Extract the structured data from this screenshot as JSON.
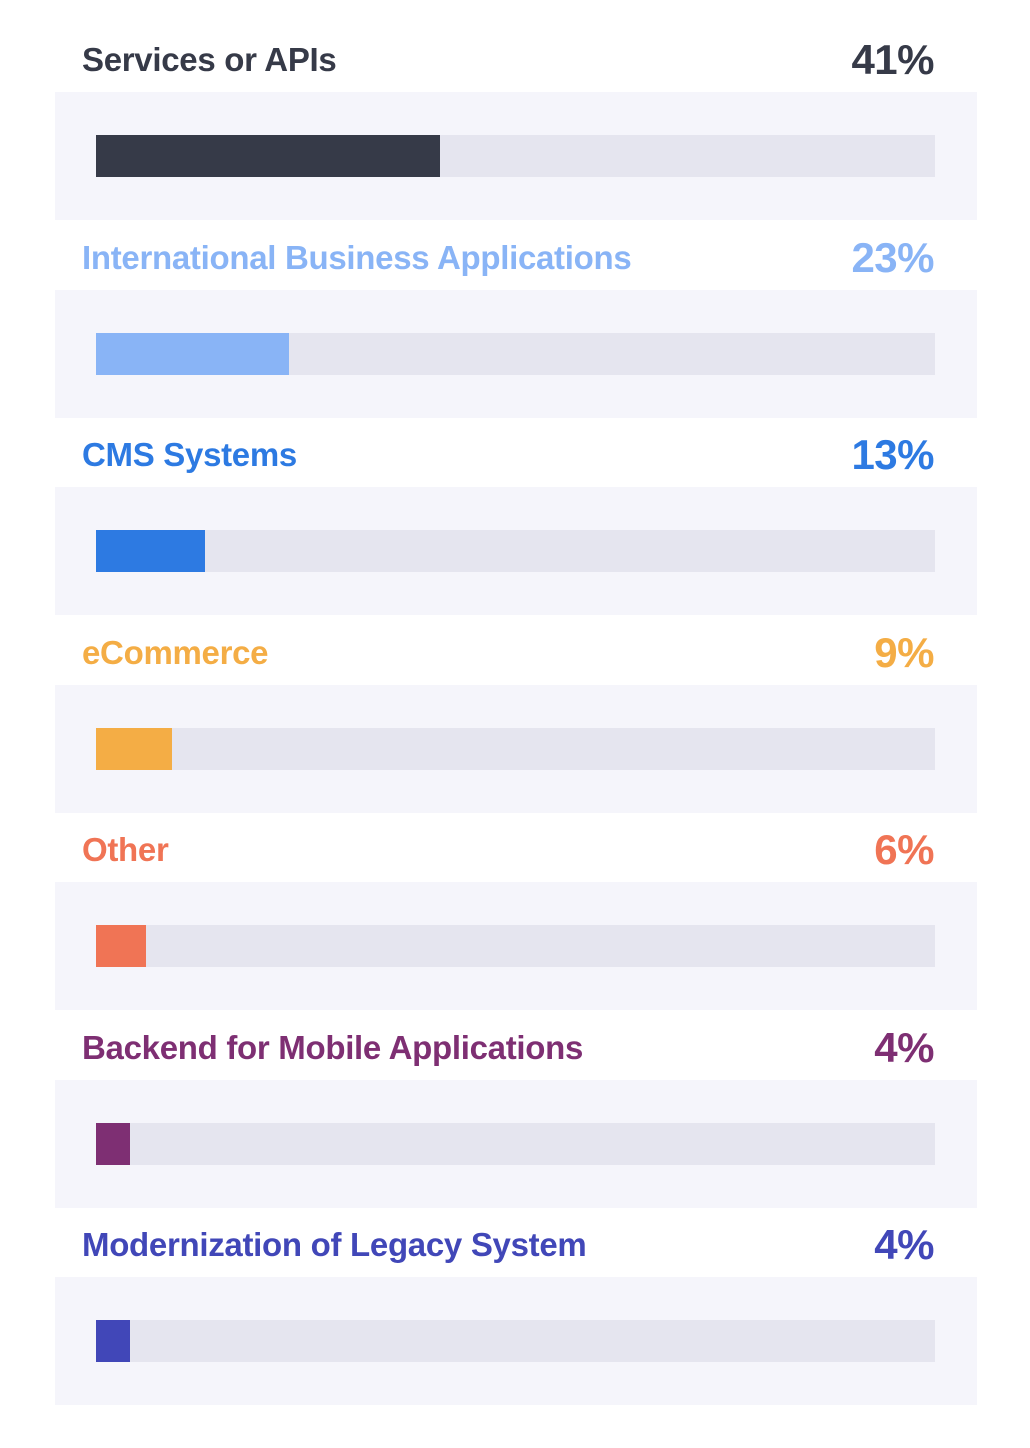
{
  "chart_data": {
    "type": "bar",
    "orientation": "horizontal",
    "xlim": [
      0,
      100
    ],
    "grid": false,
    "categories": [
      "Services or APIs",
      "International Business Applications",
      "CMS Systems",
      "eCommerce",
      "Other",
      "Backend for Mobile Applications",
      "Modernization of Legacy System"
    ],
    "values": [
      41,
      23,
      13,
      9,
      6,
      4,
      4
    ],
    "value_labels": [
      "41%",
      "23%",
      "13%",
      "9%",
      "6%",
      "4%",
      "4%"
    ],
    "colors": [
      "#363a48",
      "#89b4f6",
      "#2d7ae2",
      "#f4ad45",
      "#f07455",
      "#7e2f73",
      "#4147b8"
    ],
    "track_color": "#e5e5ef",
    "panel_color": "#f5f5fb"
  }
}
